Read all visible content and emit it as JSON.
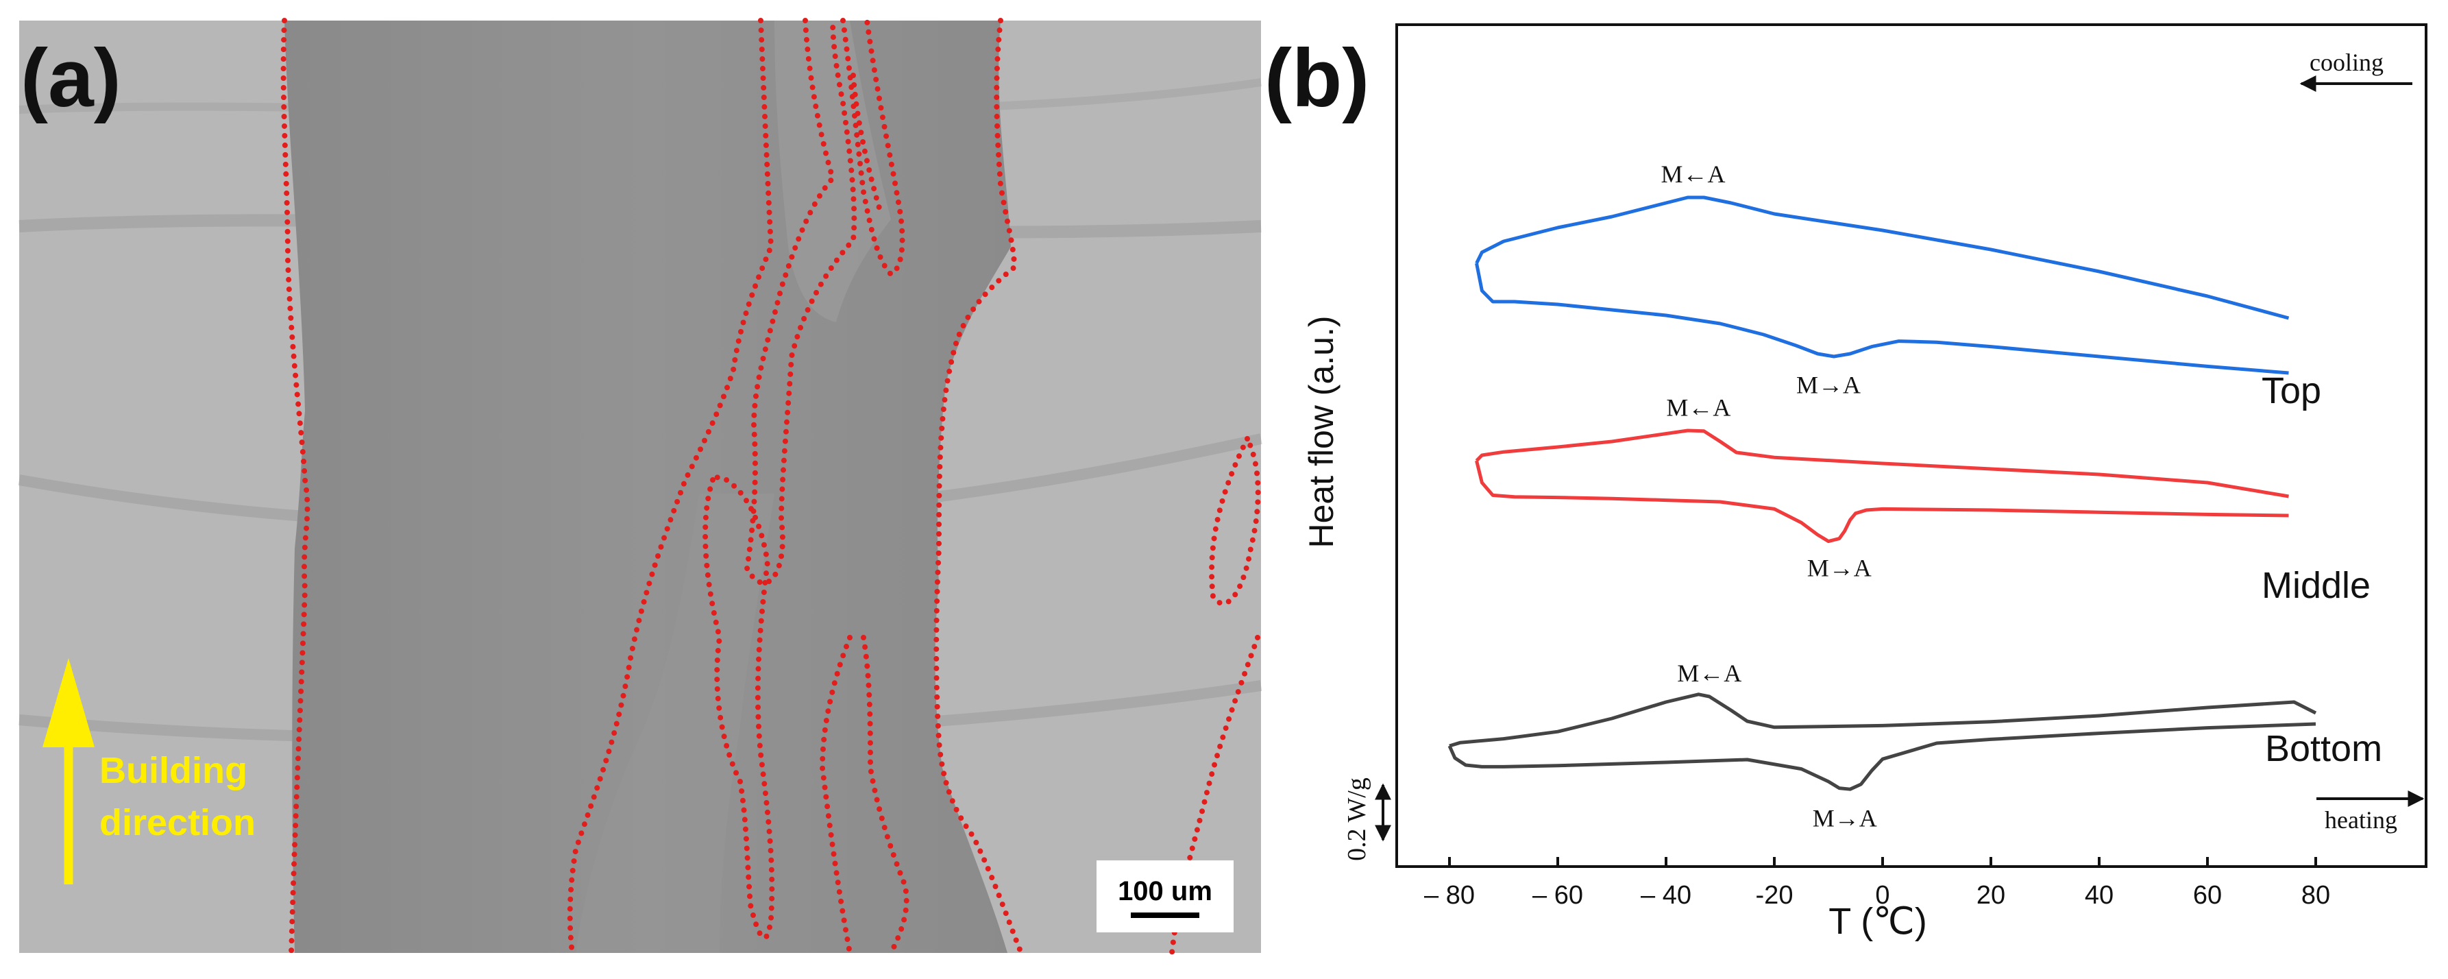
{
  "panel_a": {
    "label": "(a)",
    "arrow_label_line1": "Building",
    "arrow_label_line2": "direction",
    "scale_bar": "100 um",
    "colors": {
      "boundary": "#e31c1c",
      "arrow": "#ffee00",
      "micrograph_light": "#b9b9b9",
      "micrograph_dark": "#8f8f8f"
    }
  },
  "panel_b": {
    "label": "(b)",
    "scale_text": "0.2 W/g",
    "cooling_label": "cooling",
    "heating_label": "heating",
    "colors": {
      "top": "#1f6fe0",
      "middle": "#f03c3c",
      "bottom": "#444444"
    }
  },
  "chart_data": {
    "type": "line",
    "title": "",
    "xlabel": "T (℃)",
    "ylabel": "Heat flow (a.u.)",
    "xlim": [
      -95,
      100
    ],
    "xticks": [
      -80,
      -60,
      -40,
      -20,
      0,
      20,
      40,
      60,
      80
    ],
    "xtick_labels": [
      "– 80",
      "– 60",
      "– 40",
      "-20",
      "0",
      "20",
      "40",
      "60",
      "80"
    ],
    "y_units": "arbitrary (offset curves)",
    "series": [
      {
        "name": "Top",
        "cooling": {
          "x": [
            75,
            60,
            40,
            20,
            0,
            -10,
            -20,
            -28,
            -33,
            -36,
            -40,
            -50,
            -60,
            -70,
            -74,
            -75
          ],
          "y": [
            100,
            104,
            108.5,
            112.5,
            116,
            117.5,
            119,
            121,
            122,
            122,
            121,
            118.5,
            116.5,
            114,
            112,
            110
          ]
        },
        "heating": {
          "x": [
            -75,
            -74,
            -72,
            -68,
            -60,
            -50,
            -40,
            -30,
            -22,
            -16,
            -12,
            -9,
            -6,
            -2,
            3,
            10,
            20,
            40,
            60,
            75
          ],
          "y": [
            110,
            105,
            103,
            103,
            102.5,
            101.5,
            100.5,
            99,
            97,
            95,
            93.5,
            93,
            93.5,
            94.8,
            95.8,
            95.6,
            94.8,
            93,
            91.2,
            90
          ]
        },
        "peaks": {
          "cooling": {
            "x": -35,
            "label": "M←A"
          },
          "heating": {
            "x": -10,
            "label": "M→A"
          }
        }
      },
      {
        "name": "Middle",
        "cooling": {
          "x": [
            75,
            60,
            40,
            20,
            0,
            -20,
            -27,
            -30,
            -33,
            -36,
            -50,
            -60,
            -70,
            -74,
            -75
          ],
          "y": [
            67.5,
            70,
            71.5,
            72.5,
            73.5,
            74.6,
            75.5,
            77.5,
            79.4,
            79.5,
            77.5,
            76.5,
            75.6,
            75,
            74
          ]
        },
        "heating": {
          "x": [
            -75,
            -74,
            -72,
            -68,
            -60,
            -50,
            -40,
            -30,
            -20,
            -15,
            -12,
            -10,
            -8,
            -7,
            -6,
            -5,
            -3,
            0,
            20,
            40,
            60,
            75
          ],
          "y": [
            74,
            70,
            67.7,
            67.4,
            67.3,
            67.1,
            66.8,
            66.5,
            65.2,
            62.7,
            60.5,
            59.3,
            59.8,
            61.2,
            63.2,
            64.4,
            65,
            65.2,
            65,
            64.6,
            64.2,
            64
          ]
        },
        "peaks": {
          "cooling": {
            "x": -34,
            "label": "M←A"
          },
          "heating": {
            "x": -8,
            "label": "M→A"
          }
        }
      },
      {
        "name": "Bottom",
        "cooling": {
          "x": [
            80,
            76,
            60,
            40,
            20,
            0,
            -20,
            -25,
            -28,
            -32,
            -34,
            -40,
            -50,
            -60,
            -70,
            -78,
            -80
          ],
          "y": [
            28,
            30,
            29,
            27.5,
            26.4,
            25.7,
            25.4,
            26.5,
            28.5,
            31,
            31.4,
            30,
            27,
            24.6,
            23.3,
            22.6,
            22
          ]
        },
        "heating": {
          "x": [
            -80,
            -79,
            -77,
            -74,
            -70,
            -60,
            -40,
            -25,
            -15,
            -10,
            -8,
            -6,
            -4,
            -2,
            0,
            10,
            20,
            40,
            60,
            80
          ],
          "y": [
            22,
            19.8,
            18.5,
            18.2,
            18.2,
            18.4,
            19,
            19.5,
            17.8,
            15.5,
            14.3,
            14.1,
            15,
            17.5,
            19.6,
            22.5,
            23.2,
            24.3,
            25.3,
            26
          ]
        },
        "peaks": {
          "cooling": {
            "x": -32,
            "label": "M←A"
          },
          "heating": {
            "x": -7,
            "label": "M→A"
          }
        }
      }
    ]
  }
}
